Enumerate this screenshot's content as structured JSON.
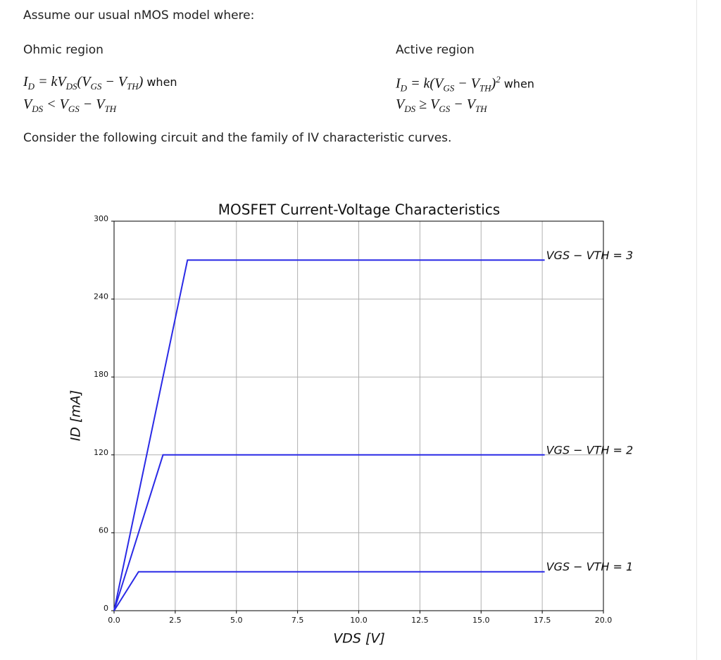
{
  "intro": "Assume our usual nMOS model where:",
  "ohmic": {
    "title": "Ohmic region",
    "formula": [
      {
        "text": "I",
        "sub": "D"
      },
      {
        "text": " = kV",
        "sub": "DS"
      },
      {
        "text": "(V",
        "sub": "GS"
      },
      {
        "text": " − V",
        "sub": "TH"
      },
      {
        "text": ")"
      }
    ],
    "when": "when",
    "condition": [
      {
        "text": "V",
        "sub": "DS"
      },
      {
        "text": " < V",
        "sub": "GS"
      },
      {
        "text": " − V",
        "sub": "TH"
      }
    ]
  },
  "active": {
    "title": "Active region",
    "formula": [
      {
        "text": "I",
        "sub": "D"
      },
      {
        "text": " = k(V",
        "sub": "GS"
      },
      {
        "text": " − V",
        "sub": "TH"
      },
      {
        "text": ")",
        "sup": "2"
      }
    ],
    "when": "when",
    "condition": [
      {
        "text": "V",
        "sub": "DS"
      },
      {
        "text": " ≥ V",
        "sub": "GS"
      },
      {
        "text": " − V",
        "sub": "TH"
      }
    ]
  },
  "consider": "Consider the following circuit and the family of IV characteristic curves.",
  "chart_data": {
    "type": "line",
    "title": "MOSFET Current-Voltage Characteristics",
    "xlabel": "VDS [V]",
    "ylabel": "ID [mA]",
    "xlim": [
      0,
      20
    ],
    "ylim": [
      0,
      300
    ],
    "xticks": [
      {
        "value": 0,
        "label": "0.0"
      },
      {
        "value": 2.5,
        "label": "2.5"
      },
      {
        "value": 5,
        "label": "5.0"
      },
      {
        "value": 7.5,
        "label": "7.5"
      },
      {
        "value": 10,
        "label": "10.0"
      },
      {
        "value": 12.5,
        "label": "12.5"
      },
      {
        "value": 15,
        "label": "15.0"
      },
      {
        "value": 17.5,
        "label": "17.5"
      },
      {
        "value": 20,
        "label": "20.0"
      }
    ],
    "yticks": [
      0,
      60,
      120,
      180,
      240,
      300
    ],
    "grid": true,
    "series": [
      {
        "name": "VGS − VTH = 3",
        "color": "#2a2ae6",
        "x": [
          0,
          3,
          17.6
        ],
        "values": [
          0,
          270,
          270
        ]
      },
      {
        "name": "VGS − VTH = 2",
        "color": "#2a2ae6",
        "x": [
          0,
          2,
          17.6
        ],
        "values": [
          0,
          120,
          120
        ]
      },
      {
        "name": "VGS − VTH = 1",
        "color": "#2a2ae6",
        "x": [
          0,
          1,
          17.6
        ],
        "values": [
          0,
          30,
          30
        ]
      }
    ]
  }
}
